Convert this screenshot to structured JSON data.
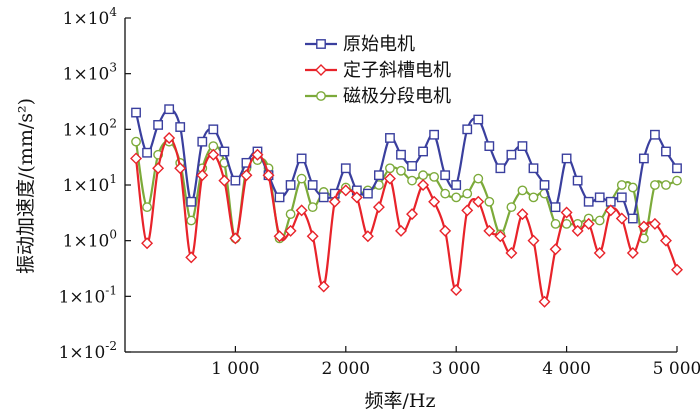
{
  "chart_data": {
    "type": "line",
    "xlabel": "频率/Hz",
    "ylabel": "振动加速度/(mm/s²)",
    "y_scale": "log",
    "xlim": [
      0,
      5000
    ],
    "ylim": [
      0.01,
      10000
    ],
    "x_ticks": [
      1000,
      2000,
      3000,
      4000,
      5000
    ],
    "x_tick_labels": [
      "1 000",
      "2 000",
      "3 000",
      "4 000",
      "5 000"
    ],
    "y_ticks": [
      0.01,
      0.1,
      1,
      10,
      100,
      1000,
      10000
    ],
    "y_tick_exponents": [
      "-2",
      "-1",
      "0",
      "1",
      "2",
      "3",
      "4"
    ],
    "y_tick_base": "1×10",
    "grid": false,
    "legend_position": "top-center",
    "x": [
      100,
      200,
      300,
      400,
      500,
      600,
      700,
      800,
      900,
      1000,
      1100,
      1200,
      1300,
      1400,
      1500,
      1600,
      1700,
      1800,
      1900,
      2000,
      2100,
      2200,
      2300,
      2400,
      2500,
      2600,
      2700,
      2800,
      2900,
      3000,
      3100,
      3200,
      3300,
      3400,
      3500,
      3600,
      3700,
      3800,
      3900,
      4000,
      4100,
      4200,
      4300,
      4400,
      4500,
      4600,
      4700,
      4800,
      4900,
      5000
    ],
    "series": [
      {
        "name": "原始电机",
        "color": "#3a3f9e",
        "marker": "square",
        "values": [
          200,
          38,
          120,
          230,
          110,
          5,
          60,
          100,
          40,
          12,
          25,
          40,
          15,
          6,
          10,
          30,
          10,
          6,
          7,
          20,
          8,
          7,
          15,
          70,
          35,
          22,
          40,
          80,
          15,
          10,
          100,
          150,
          50,
          20,
          35,
          50,
          20,
          10,
          4,
          30,
          12,
          5,
          6,
          5,
          6,
          2.5,
          30,
          80,
          40,
          20
        ]
      },
      {
        "name": "定子斜槽电机",
        "color": "#e8232a",
        "marker": "diamond",
        "values": [
          30,
          0.9,
          20,
          70,
          20,
          0.5,
          15,
          35,
          12,
          1.1,
          15,
          35,
          15,
          1.2,
          1.5,
          3.5,
          1.2,
          0.15,
          5,
          8,
          6,
          1.2,
          4,
          13,
          1.5,
          3,
          10,
          5,
          1.5,
          0.13,
          3.5,
          5,
          1.5,
          1.2,
          0.6,
          3,
          1,
          0.08,
          0.7,
          3.2,
          1.5,
          2,
          0.6,
          3.5,
          2.5,
          0.6,
          1.8,
          2,
          1,
          0.3
        ]
      },
      {
        "name": "磁极分段电机",
        "color": "#7caa3a",
        "marker": "circle",
        "values": [
          60,
          4,
          35,
          60,
          25,
          2.3,
          20,
          50,
          25,
          1.1,
          20,
          28,
          20,
          1.1,
          3,
          13,
          4,
          7.5,
          6,
          9,
          7,
          8,
          10,
          20,
          18,
          12,
          15,
          14,
          7,
          6,
          7,
          13,
          5,
          1.3,
          4,
          8,
          6,
          7,
          2,
          2,
          2,
          2.5,
          2.3,
          5,
          10,
          9,
          1.1,
          10,
          10,
          12
        ]
      }
    ]
  }
}
